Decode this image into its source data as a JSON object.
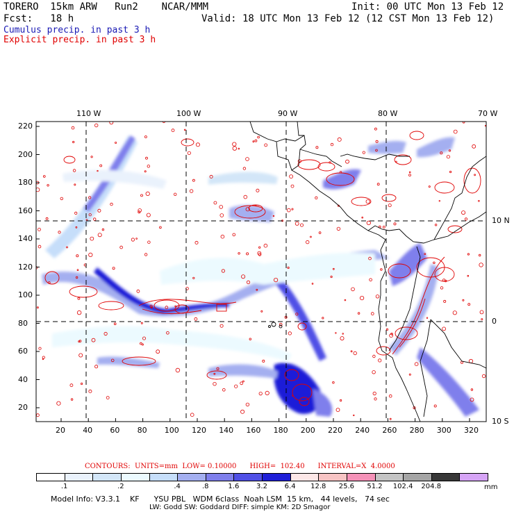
{
  "header": {
    "model": "TORERO  15km ARW   Run2    NCAR/MMM",
    "init": "Init: 00 UTC Mon 13 Feb 12",
    "fcst": "Fcst:   18 h",
    "valid": "Valid: 18 UTC Mon 13 Feb 12 (12 CST Mon 13 Feb 12)",
    "field1": "Cumulus precip. in past 3 h",
    "field2": "Explicit precip. in past 3 h",
    "field1_color": "#1a1ab4",
    "field2_color": "#e00000"
  },
  "map": {
    "lon_labels": [
      "110 W",
      "100 W",
      "90 W",
      "80 W",
      "70 W"
    ],
    "lat_labels": [
      "10 N",
      "0",
      "10 S"
    ],
    "y_ticks": [
      "220",
      "200",
      "180",
      "160",
      "140",
      "120",
      "100",
      "80",
      "60",
      "40",
      "20"
    ],
    "x_ticks": [
      "20",
      "40",
      "60",
      "80",
      "100",
      "120",
      "140",
      "160",
      "180",
      "200",
      "220",
      "240",
      "260",
      "280",
      "300",
      "320"
    ]
  },
  "contours_line": {
    "text": "CONTOURS:  UNITS=mm  LOW= 0.10000      HIGH=  102.40      INTERVAL=X  4.0000",
    "units": "mm",
    "low": "0.10000",
    "high": "102.40",
    "interval": "X  4.0000"
  },
  "colorbar": {
    "colors": [
      "#ffffff",
      "#eaf2fc",
      "#d3e6f8",
      "#ecfaff",
      "#c6defa",
      "#a4aff0",
      "#7f7fec",
      "#5050e6",
      "#1f1fd8",
      "#fce7e7",
      "#f7c4c4",
      "#f592b8",
      "#c4c4c4",
      "#a5a5a5",
      "#383838",
      "#d6a4f6"
    ],
    "labels": [
      ".1",
      ".2",
      ".4",
      ".8",
      "1.6",
      "3.2",
      "6.4",
      "12.8",
      "25.6",
      "51.2",
      "102.4",
      "204.8"
    ],
    "unit": "mm"
  },
  "footer": {
    "line1": "Model Info: V3.3.1    KF      YSU PBL   WDM 6class  Noah LSM  15 km,   44 levels,   74 sec",
    "line2": "LW: Godd SW: Goddard DIFF: simple KM: 2D Smagor"
  }
}
